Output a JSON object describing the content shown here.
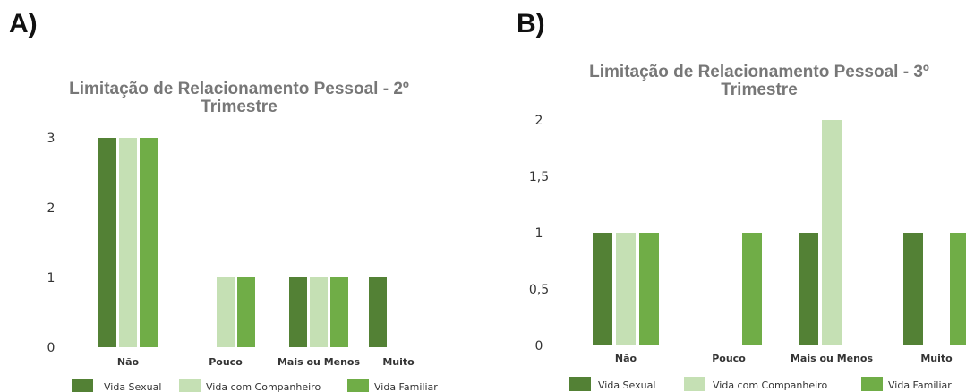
{
  "panels": [
    {
      "label": "A)"
    },
    {
      "label": "B)"
    }
  ],
  "colors": {
    "vida_sexual": "#538135",
    "vida_companheiro": "#c5e0b4",
    "vida_familiar": "#70ad47"
  },
  "chart_data": [
    {
      "type": "bar",
      "title_lines": [
        "Limitação de Relacionamento Pessoal - 2º",
        "Trimestre"
      ],
      "categories": [
        "Não",
        "Pouco",
        "Mais ou Menos",
        "Muito"
      ],
      "series": [
        {
          "name": "Vida Sexual",
          "values": [
            3,
            0,
            1,
            1
          ]
        },
        {
          "name": "Vida com Companheiro",
          "values": [
            3,
            1,
            1,
            0
          ]
        },
        {
          "name": "Vida Familiar",
          "values": [
            3,
            1,
            1,
            0
          ]
        }
      ],
      "yticks": [
        "0",
        "1",
        "2",
        "3"
      ],
      "ylim": [
        0,
        3
      ],
      "legend": "bottom"
    },
    {
      "type": "bar",
      "title_lines": [
        "Limitação de Relacionamento Pessoal - 3º",
        "Trimestre"
      ],
      "categories": [
        "Não",
        "Pouco",
        "Mais ou Menos",
        "Muito"
      ],
      "series": [
        {
          "name": "Vida Sexual",
          "values": [
            1,
            0,
            1,
            1
          ]
        },
        {
          "name": "Vida com Companheiro",
          "values": [
            1,
            0,
            2,
            0
          ]
        },
        {
          "name": "Vida Familiar",
          "values": [
            1,
            1,
            0,
            1
          ]
        }
      ],
      "yticks": [
        "0",
        "0,5",
        "1",
        "1,5",
        "2"
      ],
      "ylim": [
        0,
        2
      ],
      "legend": "bottom"
    }
  ]
}
